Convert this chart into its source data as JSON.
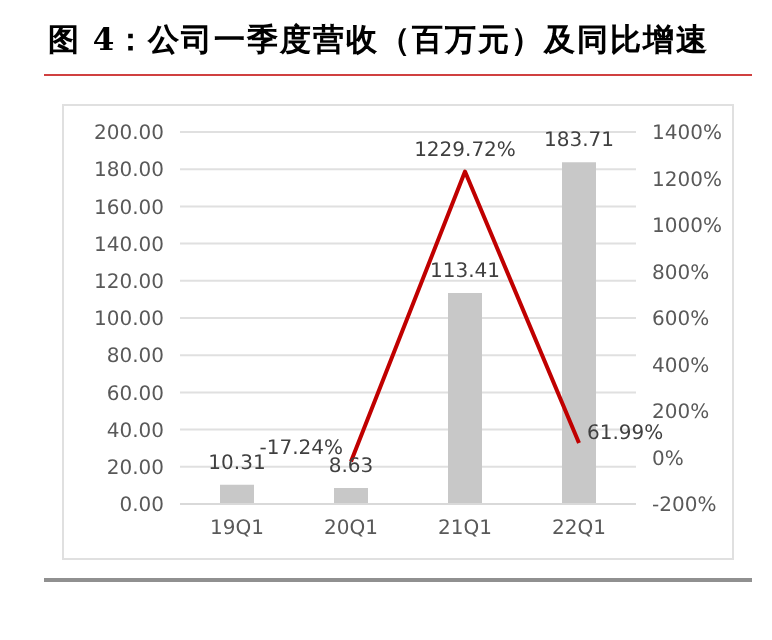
{
  "chart_data": {
    "type": "bar",
    "title": "图 4：公司一季度营收（百万元）及同比增速",
    "categories": [
      "19Q1",
      "20Q1",
      "21Q1",
      "22Q1"
    ],
    "series": [
      {
        "color": "#c8c8c8",
        "values": [
          10.31,
          8.63,
          113.41,
          183.71
        ],
        "value_labels": [
          "10.31",
          "8.63",
          "113.41",
          "183.71"
        ]
      },
      {
        "type": "line",
        "axis": "y2",
        "color": "#c00000",
        "values": [
          null,
          -17.24,
          1229.72,
          61.99
        ],
        "value_labels": [
          null,
          "-17.24%",
          "1229.72%",
          "61.99%"
        ]
      }
    ],
    "ylim": [
      0,
      200
    ],
    "yticks": [
      {
        "value": 0,
        "label": "0.00"
      },
      {
        "value": 20,
        "label": "20.00"
      },
      {
        "value": 40,
        "label": "40.00"
      },
      {
        "value": 60,
        "label": "60.00"
      },
      {
        "value": 80,
        "label": "80.00"
      },
      {
        "value": 100,
        "label": "100.00"
      },
      {
        "value": 120,
        "label": "120.00"
      },
      {
        "value": 140,
        "label": "140.00"
      },
      {
        "value": 160,
        "label": "160.00"
      },
      {
        "value": 180,
        "label": "180.00"
      },
      {
        "value": 200,
        "label": "200.00"
      }
    ],
    "y2lim": [
      -200,
      1400
    ],
    "y2ticks": [
      {
        "value": -200,
        "label": "-200%"
      },
      {
        "value": 0,
        "label": "0%"
      },
      {
        "value": 200,
        "label": "200%"
      },
      {
        "value": 400,
        "label": "400%"
      },
      {
        "value": 600,
        "label": "600%"
      },
      {
        "value": 800,
        "label": "800%"
      },
      {
        "value": 1000,
        "label": "1000%"
      },
      {
        "value": 1200,
        "label": "1200%"
      },
      {
        "value": 1400,
        "label": "1400%"
      }
    ],
    "grid": "y",
    "legend": false,
    "marker": "none",
    "line_style": "solid"
  }
}
